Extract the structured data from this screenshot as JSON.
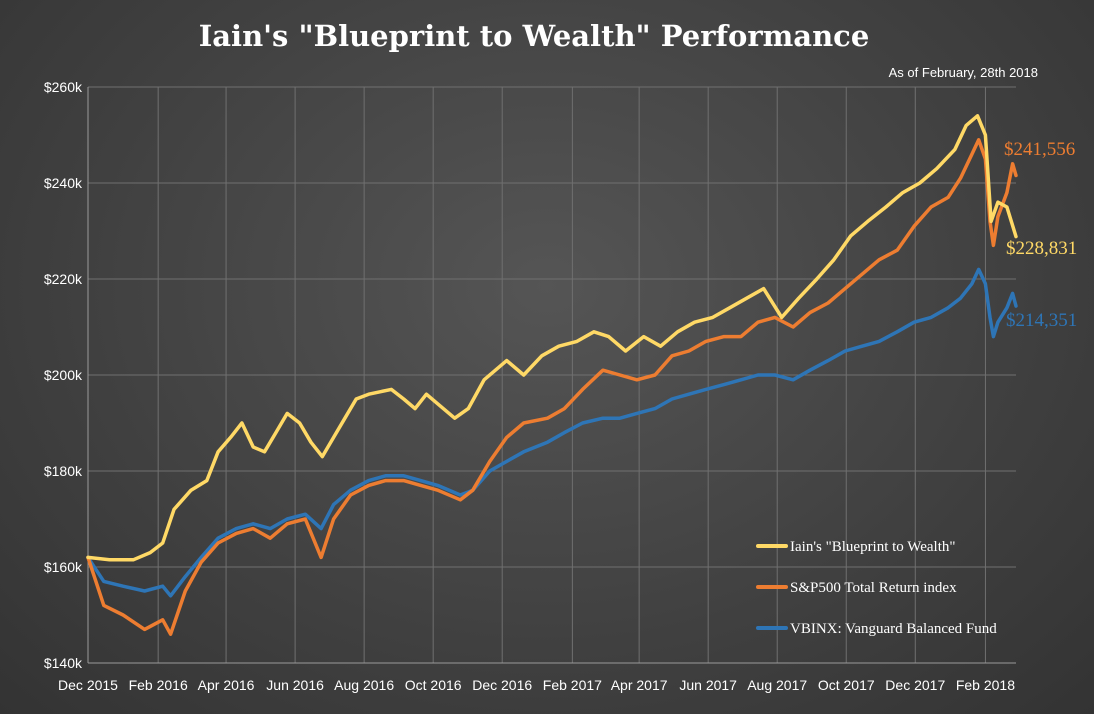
{
  "chart_data": {
    "type": "line",
    "title": "Iain's \"Blueprint to Wealth\" Performance",
    "subtitle": "As of February, 28th 2018",
    "ylim": [
      140000,
      260000
    ],
    "xlim": [
      "2015-12-01",
      "2018-02-28"
    ],
    "y_ticks": [
      {
        "value": 140000,
        "label": "$140k"
      },
      {
        "value": 160000,
        "label": "$160k"
      },
      {
        "value": 180000,
        "label": "$180k"
      },
      {
        "value": 200000,
        "label": "$200k"
      },
      {
        "value": 220000,
        "label": "$220k"
      },
      {
        "value": 240000,
        "label": "$240k"
      },
      {
        "value": 260000,
        "label": "$260k"
      }
    ],
    "x_ticks": [
      {
        "date": "2015-12-01",
        "label": "Dec 2015"
      },
      {
        "date": "2016-02-01",
        "label": "Feb 2016"
      },
      {
        "date": "2016-04-01",
        "label": "Apr 2016"
      },
      {
        "date": "2016-06-01",
        "label": "Jun 2016"
      },
      {
        "date": "2016-08-01",
        "label": "Aug 2016"
      },
      {
        "date": "2016-10-01",
        "label": "Oct 2016"
      },
      {
        "date": "2016-12-01",
        "label": "Dec 2016"
      },
      {
        "date": "2017-02-01",
        "label": "Feb 2017"
      },
      {
        "date": "2017-04-01",
        "label": "Apr 2017"
      },
      {
        "date": "2017-06-01",
        "label": "Jun 2017"
      },
      {
        "date": "2017-08-01",
        "label": "Aug 2017"
      },
      {
        "date": "2017-10-01",
        "label": "Oct 2017"
      },
      {
        "date": "2017-12-01",
        "label": "Dec 2017"
      },
      {
        "date": "2018-02-01",
        "label": "Feb 2018"
      }
    ],
    "grid": true,
    "legend_position": "bottom-right",
    "series": [
      {
        "name": "Iain's \"Blueprint to Wealth\"",
        "color": "#ffd966",
        "end_label": "$228,831",
        "points": [
          [
            "2015-12-01",
            162000
          ],
          [
            "2015-12-20",
            161500
          ],
          [
            "2016-01-10",
            161500
          ],
          [
            "2016-01-25",
            163000
          ],
          [
            "2016-02-05",
            165000
          ],
          [
            "2016-02-15",
            172000
          ],
          [
            "2016-03-01",
            176000
          ],
          [
            "2016-03-15",
            178000
          ],
          [
            "2016-03-25",
            184000
          ],
          [
            "2016-04-05",
            187000
          ],
          [
            "2016-04-15",
            190000
          ],
          [
            "2016-04-25",
            185000
          ],
          [
            "2016-05-05",
            184000
          ],
          [
            "2016-05-15",
            188000
          ],
          [
            "2016-05-25",
            192000
          ],
          [
            "2016-06-05",
            190000
          ],
          [
            "2016-06-15",
            186000
          ],
          [
            "2016-06-25",
            183000
          ],
          [
            "2016-07-05",
            187000
          ],
          [
            "2016-07-15",
            191000
          ],
          [
            "2016-07-25",
            195000
          ],
          [
            "2016-08-05",
            196000
          ],
          [
            "2016-08-15",
            196500
          ],
          [
            "2016-08-25",
            197000
          ],
          [
            "2016-09-05",
            195000
          ],
          [
            "2016-09-15",
            193000
          ],
          [
            "2016-09-25",
            196000
          ],
          [
            "2016-10-05",
            194000
          ],
          [
            "2016-10-20",
            191000
          ],
          [
            "2016-11-01",
            193000
          ],
          [
            "2016-11-15",
            199000
          ],
          [
            "2016-11-25",
            201000
          ],
          [
            "2016-12-05",
            203000
          ],
          [
            "2016-12-20",
            200000
          ],
          [
            "2017-01-05",
            204000
          ],
          [
            "2017-01-20",
            206000
          ],
          [
            "2017-02-05",
            207000
          ],
          [
            "2017-02-20",
            209000
          ],
          [
            "2017-03-05",
            208000
          ],
          [
            "2017-03-20",
            205000
          ],
          [
            "2017-04-05",
            208000
          ],
          [
            "2017-04-20",
            206000
          ],
          [
            "2017-05-05",
            209000
          ],
          [
            "2017-05-20",
            211000
          ],
          [
            "2017-06-05",
            212000
          ],
          [
            "2017-06-20",
            214000
          ],
          [
            "2017-07-05",
            216000
          ],
          [
            "2017-07-20",
            218000
          ],
          [
            "2017-08-05",
            212000
          ],
          [
            "2017-08-20",
            216000
          ],
          [
            "2017-09-05",
            220000
          ],
          [
            "2017-09-20",
            224000
          ],
          [
            "2017-10-05",
            229000
          ],
          [
            "2017-10-20",
            232000
          ],
          [
            "2017-11-05",
            235000
          ],
          [
            "2017-11-20",
            238000
          ],
          [
            "2017-12-05",
            240000
          ],
          [
            "2017-12-20",
            243000
          ],
          [
            "2018-01-05",
            247000
          ],
          [
            "2018-01-15",
            252000
          ],
          [
            "2018-01-25",
            254000
          ],
          [
            "2018-02-01",
            250000
          ],
          [
            "2018-02-06",
            232000
          ],
          [
            "2018-02-12",
            236000
          ],
          [
            "2018-02-20",
            235000
          ],
          [
            "2018-02-28",
            228831
          ]
        ]
      },
      {
        "name": "S&P500 Total Return index",
        "color": "#ed7d31",
        "end_label": "$241,556",
        "points": [
          [
            "2015-12-01",
            162000
          ],
          [
            "2015-12-15",
            152000
          ],
          [
            "2016-01-01",
            150000
          ],
          [
            "2016-01-20",
            147000
          ],
          [
            "2016-02-05",
            149000
          ],
          [
            "2016-02-12",
            146000
          ],
          [
            "2016-02-25",
            155000
          ],
          [
            "2016-03-10",
            161000
          ],
          [
            "2016-03-25",
            165000
          ],
          [
            "2016-04-10",
            167000
          ],
          [
            "2016-04-25",
            168000
          ],
          [
            "2016-05-10",
            166000
          ],
          [
            "2016-05-25",
            169000
          ],
          [
            "2016-06-10",
            170000
          ],
          [
            "2016-06-24",
            162000
          ],
          [
            "2016-07-05",
            170000
          ],
          [
            "2016-07-20",
            175000
          ],
          [
            "2016-08-05",
            177000
          ],
          [
            "2016-08-20",
            178000
          ],
          [
            "2016-09-05",
            178000
          ],
          [
            "2016-09-20",
            177000
          ],
          [
            "2016-10-05",
            176000
          ],
          [
            "2016-10-25",
            174000
          ],
          [
            "2016-11-05",
            176000
          ],
          [
            "2016-11-20",
            182000
          ],
          [
            "2016-12-05",
            187000
          ],
          [
            "2016-12-20",
            190000
          ],
          [
            "2017-01-10",
            191000
          ],
          [
            "2017-01-25",
            193000
          ],
          [
            "2017-02-10",
            197000
          ],
          [
            "2017-02-28",
            201000
          ],
          [
            "2017-03-15",
            200000
          ],
          [
            "2017-03-30",
            199000
          ],
          [
            "2017-04-15",
            200000
          ],
          [
            "2017-04-30",
            204000
          ],
          [
            "2017-05-15",
            205000
          ],
          [
            "2017-05-30",
            207000
          ],
          [
            "2017-06-15",
            208000
          ],
          [
            "2017-06-30",
            208000
          ],
          [
            "2017-07-15",
            211000
          ],
          [
            "2017-07-30",
            212000
          ],
          [
            "2017-08-15",
            210000
          ],
          [
            "2017-08-30",
            213000
          ],
          [
            "2017-09-15",
            215000
          ],
          [
            "2017-09-30",
            218000
          ],
          [
            "2017-10-15",
            221000
          ],
          [
            "2017-10-30",
            224000
          ],
          [
            "2017-11-15",
            226000
          ],
          [
            "2017-11-30",
            231000
          ],
          [
            "2017-12-15",
            235000
          ],
          [
            "2017-12-30",
            237000
          ],
          [
            "2018-01-10",
            241000
          ],
          [
            "2018-01-20",
            246000
          ],
          [
            "2018-01-26",
            249000
          ],
          [
            "2018-02-01",
            245000
          ],
          [
            "2018-02-05",
            232000
          ],
          [
            "2018-02-08",
            227000
          ],
          [
            "2018-02-12",
            233000
          ],
          [
            "2018-02-20",
            238000
          ],
          [
            "2018-02-25",
            244000
          ],
          [
            "2018-02-28",
            241556
          ]
        ]
      },
      {
        "name": "VBINX: Vanguard Balanced Fund",
        "color": "#2e75b6",
        "end_label": "$214,351",
        "points": [
          [
            "2015-12-01",
            162000
          ],
          [
            "2015-12-15",
            157000
          ],
          [
            "2016-01-01",
            156000
          ],
          [
            "2016-01-20",
            155000
          ],
          [
            "2016-02-05",
            156000
          ],
          [
            "2016-02-12",
            154000
          ],
          [
            "2016-02-25",
            158000
          ],
          [
            "2016-03-10",
            162000
          ],
          [
            "2016-03-25",
            166000
          ],
          [
            "2016-04-10",
            168000
          ],
          [
            "2016-04-25",
            169000
          ],
          [
            "2016-05-10",
            168000
          ],
          [
            "2016-05-25",
            170000
          ],
          [
            "2016-06-10",
            171000
          ],
          [
            "2016-06-24",
            168000
          ],
          [
            "2016-07-05",
            173000
          ],
          [
            "2016-07-20",
            176000
          ],
          [
            "2016-08-05",
            178000
          ],
          [
            "2016-08-20",
            179000
          ],
          [
            "2016-09-05",
            179000
          ],
          [
            "2016-09-20",
            178000
          ],
          [
            "2016-10-05",
            177000
          ],
          [
            "2016-10-25",
            175000
          ],
          [
            "2016-11-05",
            176000
          ],
          [
            "2016-11-20",
            180000
          ],
          [
            "2016-12-05",
            182000
          ],
          [
            "2016-12-20",
            184000
          ],
          [
            "2017-01-10",
            186000
          ],
          [
            "2017-01-25",
            188000
          ],
          [
            "2017-02-10",
            190000
          ],
          [
            "2017-02-28",
            191000
          ],
          [
            "2017-03-15",
            191000
          ],
          [
            "2017-03-30",
            192000
          ],
          [
            "2017-04-15",
            193000
          ],
          [
            "2017-04-30",
            195000
          ],
          [
            "2017-05-15",
            196000
          ],
          [
            "2017-05-30",
            197000
          ],
          [
            "2017-06-15",
            198000
          ],
          [
            "2017-06-30",
            199000
          ],
          [
            "2017-07-15",
            200000
          ],
          [
            "2017-07-30",
            200000
          ],
          [
            "2017-08-15",
            199000
          ],
          [
            "2017-08-30",
            201000
          ],
          [
            "2017-09-15",
            203000
          ],
          [
            "2017-09-30",
            205000
          ],
          [
            "2017-10-15",
            206000
          ],
          [
            "2017-10-30",
            207000
          ],
          [
            "2017-11-15",
            209000
          ],
          [
            "2017-11-30",
            211000
          ],
          [
            "2017-12-15",
            212000
          ],
          [
            "2017-12-30",
            214000
          ],
          [
            "2018-01-10",
            216000
          ],
          [
            "2018-01-20",
            219000
          ],
          [
            "2018-01-26",
            222000
          ],
          [
            "2018-02-01",
            219000
          ],
          [
            "2018-02-05",
            212000
          ],
          [
            "2018-02-08",
            208000
          ],
          [
            "2018-02-12",
            211000
          ],
          [
            "2018-02-20",
            214000
          ],
          [
            "2018-02-25",
            217000
          ],
          [
            "2018-02-28",
            214351
          ]
        ]
      }
    ]
  }
}
